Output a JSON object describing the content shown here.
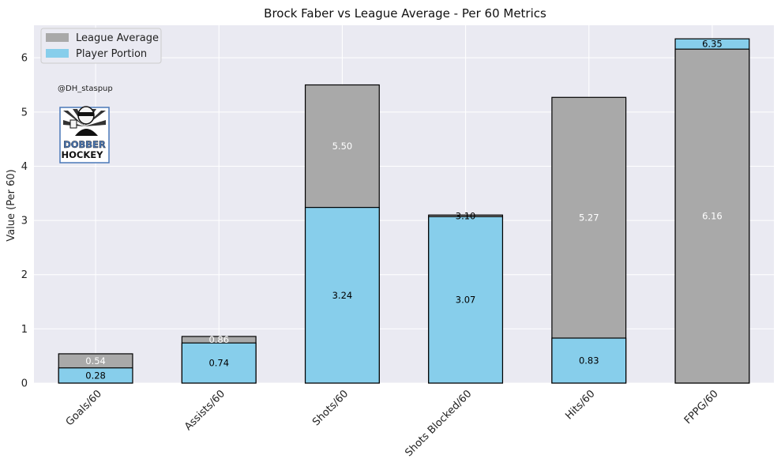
{
  "chart_data": {
    "type": "bar",
    "stacking": "overlay",
    "title": "Brock Faber vs League Average - Per 60 Metrics",
    "xlabel": "",
    "ylabel": "Value (Per 60)",
    "ylim": [
      0,
      6.6
    ],
    "yticks": [
      0,
      1,
      2,
      3,
      4,
      5,
      6
    ],
    "grid": true,
    "legend_position": "top-left",
    "categories": [
      "Goals/60",
      "Assists/60",
      "Shots/60",
      "Shots Blocked/60",
      "Hits/60",
      "FPPG/60"
    ],
    "series": [
      {
        "name": "League Average",
        "color": "#a9a9a9",
        "values": [
          0.54,
          0.86,
          5.5,
          3.1,
          5.27,
          6.16
        ],
        "labels": [
          "0.54",
          "0.86",
          "5.50",
          "3.10",
          "5.27",
          "6.16"
        ]
      },
      {
        "name": "Player Portion",
        "color": "#87ceeb",
        "values": [
          0.28,
          0.74,
          3.24,
          3.07,
          0.83,
          6.35
        ],
        "labels": [
          "0.28",
          "0.74",
          "3.24",
          "3.07",
          "0.83",
          "6.35"
        ]
      }
    ],
    "watermark": {
      "handle": "@DH_staspup",
      "logo": "dobber-hockey-logo"
    }
  },
  "colors": {
    "plot_background": "#eaeaf2",
    "grid": "#ffffff",
    "bar_edge": "#000000",
    "label_on_gray": "#ffffff",
    "label_on_blue": "#000000"
  }
}
